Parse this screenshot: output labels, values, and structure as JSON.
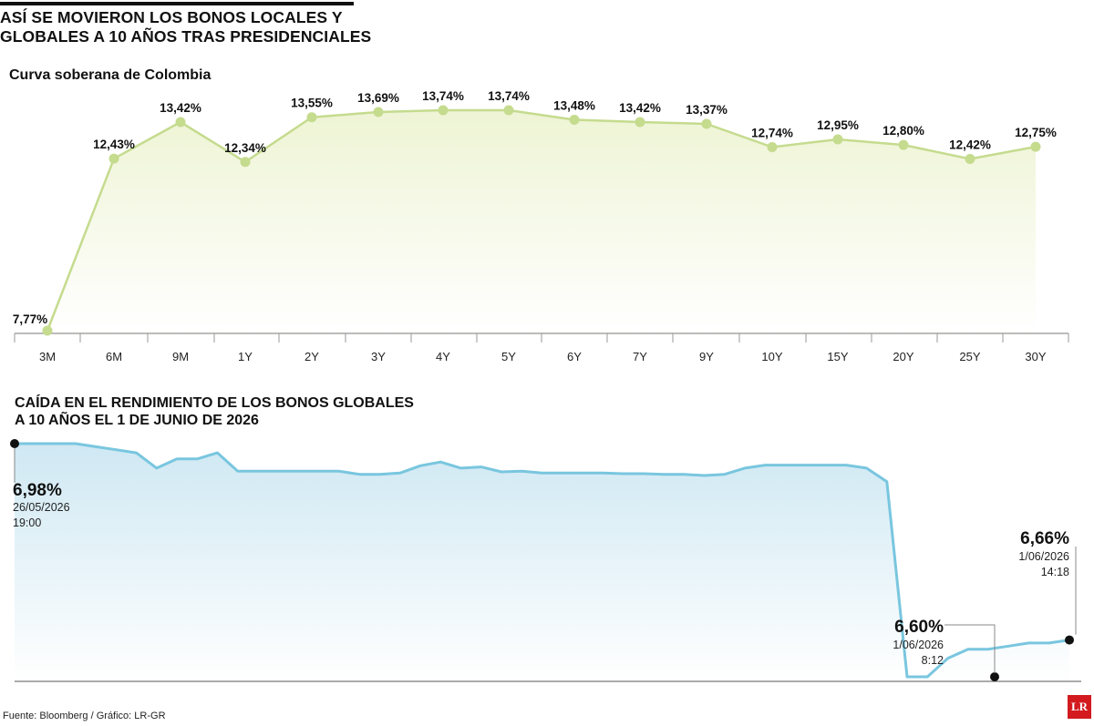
{
  "header": {
    "title": "ASÍ SE MOVIERON LOS BONOS LOCALES Y\nGLOBALES A 10 AÑOS TRAS PRESIDENCIALES"
  },
  "footer": {
    "source": "Fuente: Bloomberg / Gráfico: LR-GR",
    "logo_text": "LR"
  },
  "colors": {
    "curve_line": "#c5db8e",
    "curve_fill_top": "#eef4d4",
    "global_line": "#79c6df",
    "global_fill_top": "#cfe8f3"
  },
  "chart_data": [
    {
      "type": "line",
      "title": "Curva soberana de Colombia",
      "categories": [
        "3M",
        "6M",
        "9M",
        "1Y",
        "2Y",
        "3Y",
        "4Y",
        "5Y",
        "6Y",
        "7Y",
        "9Y",
        "10Y",
        "15Y",
        "20Y",
        "25Y",
        "30Y"
      ],
      "values": [
        7.77,
        12.43,
        13.42,
        12.34,
        13.55,
        13.69,
        13.74,
        13.74,
        13.48,
        13.42,
        13.37,
        12.74,
        12.95,
        12.8,
        12.42,
        12.75
      ],
      "labels": [
        "7,77%",
        "12,43%",
        "13,42%",
        "12,34%",
        "13,55%",
        "13,69%",
        "13,74%",
        "13,74%",
        "13,48%",
        "13,42%",
        "13,37%",
        "12,74%",
        "12,95%",
        "12,80%",
        "12,42%",
        "12,75%"
      ],
      "unit": "%",
      "ylim": [
        7.77,
        13.74
      ]
    },
    {
      "type": "area",
      "title": "CAÍDA EN EL RENDIMIENTO DE LOS BONOS GLOBALES\nA 10 AÑOS EL 1 DE JUNIO DE 2026",
      "series": [
        {
          "values": [
            6.98,
            6.98,
            6.98,
            6.98,
            6.975,
            6.97,
            6.965,
            6.94,
            6.955,
            6.955,
            6.965,
            6.935,
            6.935,
            6.935,
            6.935,
            6.935,
            6.935,
            6.93,
            6.93,
            6.932,
            6.944,
            6.95,
            6.94,
            6.942,
            6.934,
            6.935,
            6.932,
            6.932,
            6.932,
            6.932,
            6.931,
            6.931,
            6.93,
            6.93,
            6.928,
            6.93,
            6.94,
            6.945,
            6.945,
            6.945,
            6.945,
            6.945,
            6.94,
            6.918,
            6.6,
            6.6,
            6.63,
            6.645,
            6.645,
            6.65,
            6.655,
            6.655,
            6.66
          ]
        }
      ],
      "ylim": [
        6.6,
        6.98
      ],
      "annotations": [
        {
          "value": "6,98%",
          "date": "26/05/2026",
          "time": "19:00"
        },
        {
          "value": "6,60%",
          "date": "1/06/2026",
          "time": "8:12"
        },
        {
          "value": "6,66%",
          "date": "1/06/2026",
          "time": "14:18"
        }
      ]
    }
  ]
}
